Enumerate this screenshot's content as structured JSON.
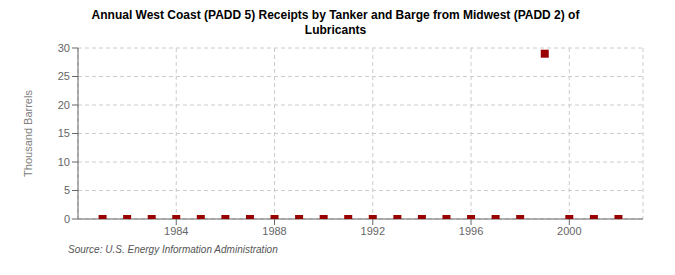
{
  "chart_data": {
    "type": "scatter",
    "title": "Annual West Coast (PADD 5) Receipts by Tanker and Barge from Midwest (PADD 2) of\nLubricants",
    "y_label": "Thousand Barrels",
    "annotations": [
      "Source: U.S. Energy Information Administration"
    ],
    "x": [
      1981,
      1982,
      1983,
      1984,
      1985,
      1986,
      1987,
      1988,
      1989,
      1990,
      1991,
      1992,
      1993,
      1994,
      1995,
      1996,
      1997,
      1998,
      1999,
      2000,
      2001,
      2002
    ],
    "values": [
      0,
      0,
      0,
      0,
      0,
      0,
      0,
      0,
      0,
      0,
      0,
      0,
      0,
      0,
      0,
      0,
      0,
      0,
      29,
      0,
      0,
      0
    ],
    "color": "#990000",
    "marker": "square",
    "xlim": [
      1980,
      2003
    ],
    "ylim": [
      0,
      30
    ],
    "xticks": [
      1984,
      1988,
      1992,
      1996,
      2000
    ],
    "yticks": [
      0,
      5,
      10,
      15,
      20,
      25,
      30
    ],
    "grid": true
  }
}
